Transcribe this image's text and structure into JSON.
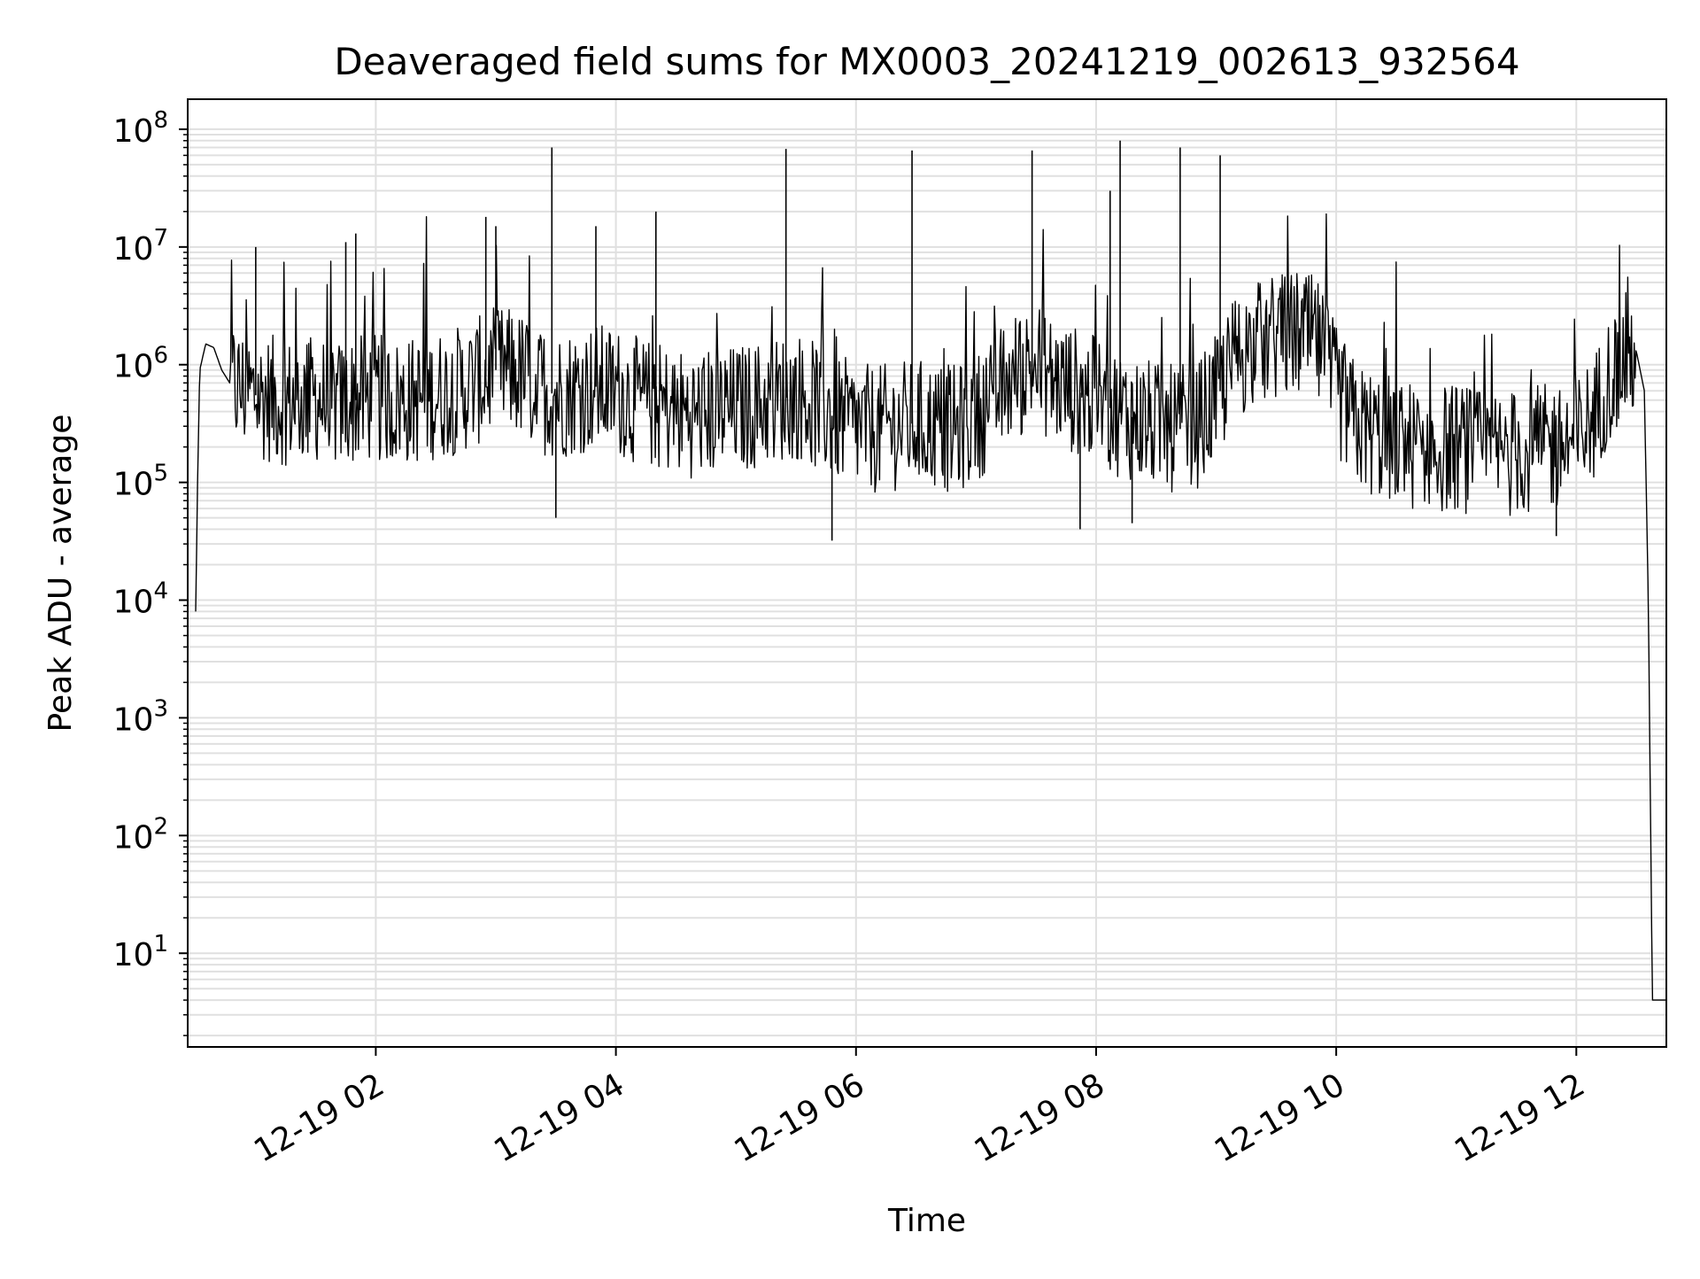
{
  "chart_data": {
    "type": "line",
    "title": "Deaveraged field sums for MX0003_20241219_002613_932564",
    "xlabel": "Time",
    "ylabel": "Peak ADU - average",
    "yscale": "log",
    "ylim": [
      1.6,
      180000000
    ],
    "xlim": [
      "2024-12-19 00:26",
      "2024-12-19 12:45"
    ],
    "grid": true,
    "line_color": "#000000",
    "grid_color": "#e0e0e0",
    "xticks": [
      {
        "value": "2024-12-19 02:00",
        "label": "12-19 02"
      },
      {
        "value": "2024-12-19 04:00",
        "label": "12-19 04"
      },
      {
        "value": "2024-12-19 06:00",
        "label": "12-19 06"
      },
      {
        "value": "2024-12-19 08:00",
        "label": "12-19 08"
      },
      {
        "value": "2024-12-19 10:00",
        "label": "12-19 10"
      },
      {
        "value": "2024-12-19 12:00",
        "label": "12-19 12"
      }
    ],
    "yticks": [
      {
        "value": 10,
        "base": "10",
        "exp": "1"
      },
      {
        "value": 100,
        "base": "10",
        "exp": "2"
      },
      {
        "value": 1000,
        "base": "10",
        "exp": "3"
      },
      {
        "value": 10000,
        "base": "10",
        "exp": "4"
      },
      {
        "value": 100000,
        "base": "10",
        "exp": "5"
      },
      {
        "value": 1000000,
        "base": "10",
        "exp": "6"
      },
      {
        "value": 10000000,
        "base": "10",
        "exp": "7"
      },
      {
        "value": 100000000,
        "base": "10",
        "exp": "8"
      }
    ],
    "series": [
      {
        "x": [
          "2024-12-19 00:30",
          "2024-12-19 00:31",
          "2024-12-19 00:32",
          "2024-12-19 00:35",
          "2024-12-19 00:39",
          "2024-12-19 00:43",
          "2024-12-19 00:47",
          "2024-12-19 00:53",
          "2024-12-19 01:00",
          "2024-12-19 01:10",
          "2024-12-19 01:20",
          "2024-12-19 01:30",
          "2024-12-19 01:40",
          "2024-12-19 01:50",
          "2024-12-19 02:00",
          "2024-12-19 02:10",
          "2024-12-19 02:20",
          "2024-12-19 02:30",
          "2024-12-19 02:40",
          "2024-12-19 02:50",
          "2024-12-19 03:00",
          "2024-12-19 03:10",
          "2024-12-19 03:20",
          "2024-12-19 03:30",
          "2024-12-19 03:40",
          "2024-12-19 03:50",
          "2024-12-19 04:00",
          "2024-12-19 04:10",
          "2024-12-19 04:20",
          "2024-12-19 04:30",
          "2024-12-19 04:40",
          "2024-12-19 04:50",
          "2024-12-19 05:00",
          "2024-12-19 05:10",
          "2024-12-19 05:20",
          "2024-12-19 05:30",
          "2024-12-19 05:40",
          "2024-12-19 05:50",
          "2024-12-19 06:00",
          "2024-12-19 06:10",
          "2024-12-19 06:20",
          "2024-12-19 06:30",
          "2024-12-19 06:40",
          "2024-12-19 06:50",
          "2024-12-19 07:00",
          "2024-12-19 07:10",
          "2024-12-19 07:20",
          "2024-12-19 07:30",
          "2024-12-19 07:40",
          "2024-12-19 07:50",
          "2024-12-19 08:00",
          "2024-12-19 08:10",
          "2024-12-19 08:20",
          "2024-12-19 08:30",
          "2024-12-19 08:40",
          "2024-12-19 08:50",
          "2024-12-19 09:00",
          "2024-12-19 09:10",
          "2024-12-19 09:20",
          "2024-12-19 09:30",
          "2024-12-19 09:40",
          "2024-12-19 09:50",
          "2024-12-19 10:00",
          "2024-12-19 10:10",
          "2024-12-19 10:20",
          "2024-12-19 10:30",
          "2024-12-19 10:40",
          "2024-12-19 10:50",
          "2024-12-19 11:00",
          "2024-12-19 11:10",
          "2024-12-19 11:20",
          "2024-12-19 11:30",
          "2024-12-19 11:40",
          "2024-12-19 11:50",
          "2024-12-19 12:00",
          "2024-12-19 12:10",
          "2024-12-19 12:15",
          "2024-12-19 12:20",
          "2024-12-19 12:25",
          "2024-12-19 12:30",
          "2024-12-19 12:34",
          "2024-12-19 12:36",
          "2024-12-19 12:38",
          "2024-12-19 12:45"
        ],
        "y": [
          8000,
          120000,
          900000,
          1500000,
          1400000,
          900000,
          700000,
          600000,
          550000,
          500000,
          480000,
          520000,
          450000,
          500000,
          520000,
          480000,
          500000,
          550000,
          600000,
          700000,
          900000,
          850000,
          650000,
          550000,
          600000,
          650000,
          600000,
          500000,
          450000,
          400000,
          380000,
          400000,
          420000,
          450000,
          500000,
          550000,
          450000,
          350000,
          300000,
          280000,
          300000,
          320000,
          300000,
          280000,
          350000,
          550000,
          800000,
          1000000,
          700000,
          600000,
          500000,
          400000,
          350000,
          300000,
          280000,
          300000,
          500000,
          1200000,
          1500000,
          1700000,
          1800000,
          1600000,
          600000,
          300000,
          250000,
          230000,
          200000,
          190000,
          200000,
          180000,
          170000,
          180000,
          190000,
          200000,
          220000,
          400000,
          700000,
          900000,
          1200000,
          1300000,
          600000,
          10000,
          4,
          4
        ]
      }
    ],
    "spikes": [
      {
        "x": "2024-12-19 01:00",
        "y": 10000000
      },
      {
        "x": "2024-12-19 01:45",
        "y": 11000000
      },
      {
        "x": "2024-12-19 01:50",
        "y": 13000000
      },
      {
        "x": "2024-12-19 02:55",
        "y": 18000000
      },
      {
        "x": "2024-12-19 03:00",
        "y": 15000000
      },
      {
        "x": "2024-12-19 03:28",
        "y": 70000000
      },
      {
        "x": "2024-12-19 03:50",
        "y": 15000000
      },
      {
        "x": "2024-12-19 04:20",
        "y": 20000000
      },
      {
        "x": "2024-12-19 05:25",
        "y": 68000000
      },
      {
        "x": "2024-12-19 06:28",
        "y": 66000000
      },
      {
        "x": "2024-12-19 07:28",
        "y": 66000000
      },
      {
        "x": "2024-12-19 08:07",
        "y": 30000000
      },
      {
        "x": "2024-12-19 08:12",
        "y": 80000000
      },
      {
        "x": "2024-12-19 08:42",
        "y": 70000000
      },
      {
        "x": "2024-12-19 09:02",
        "y": 60000000
      }
    ],
    "dips": [
      {
        "x": "2024-12-19 03:30",
        "y": 50000
      },
      {
        "x": "2024-12-19 05:48",
        "y": 32000
      },
      {
        "x": "2024-12-19 07:52",
        "y": 40000
      },
      {
        "x": "2024-12-19 08:18",
        "y": 45000
      },
      {
        "x": "2024-12-19 11:50",
        "y": 35000
      }
    ]
  }
}
